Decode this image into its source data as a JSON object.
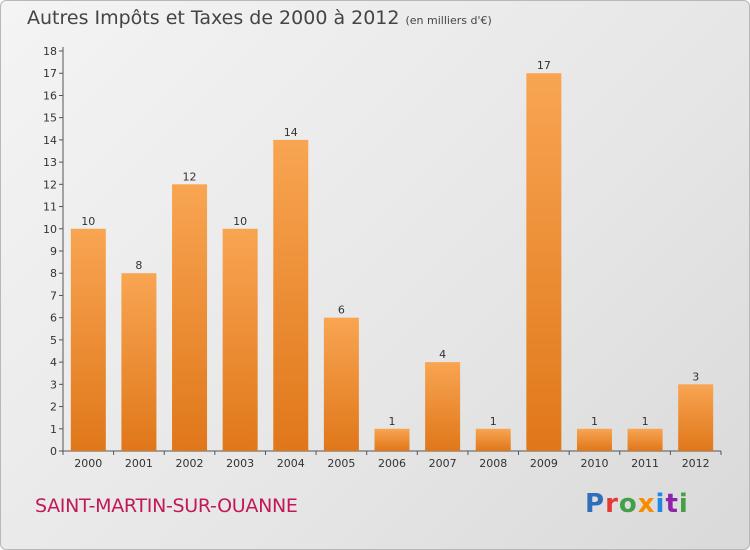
{
  "chart_data": {
    "type": "bar",
    "title": "Autres Impôts et Taxes de 2000 à 2012",
    "subtitle": "(en milliers d'€)",
    "categories": [
      "2000",
      "2001",
      "2002",
      "2003",
      "2004",
      "2005",
      "2006",
      "2007",
      "2008",
      "2009",
      "2010",
      "2011",
      "2012"
    ],
    "values": [
      10,
      8,
      12,
      10,
      14,
      6,
      1,
      4,
      1,
      17,
      1,
      1,
      3
    ],
    "ylim": [
      0,
      18
    ],
    "yticks": [
      0,
      1,
      2,
      3,
      4,
      5,
      6,
      7,
      8,
      9,
      10,
      11,
      12,
      13,
      14,
      15,
      16,
      17,
      18
    ],
    "grid": false,
    "colors": {
      "bar_top": "#f8a552",
      "bar_bottom": "#e0771a",
      "axis": "#555555"
    }
  },
  "footer": {
    "location": "SAINT-MARTIN-SUR-OUANNE",
    "brand_letters": [
      {
        "ch": "P",
        "color": "#2f6fba"
      },
      {
        "ch": "r",
        "color": "#e53935"
      },
      {
        "ch": "o",
        "color": "#43a047"
      },
      {
        "ch": "x",
        "color": "#fb8c00"
      },
      {
        "ch": "i",
        "color": "#1e88e5"
      },
      {
        "ch": "t",
        "color": "#8e24aa"
      },
      {
        "ch": "i",
        "color": "#43a047"
      }
    ]
  }
}
